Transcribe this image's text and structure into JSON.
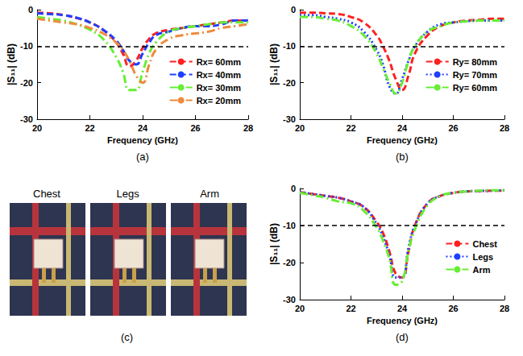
{
  "chart_data": [
    {
      "type": "line",
      "caption": "(a)",
      "x_label": "Frequency (GHz)",
      "y_label": "|S₁₁| (dB)",
      "x": [
        20,
        20.5,
        21,
        21.5,
        22,
        22.5,
        23,
        23.25,
        23.5,
        23.75,
        24,
        24.25,
        24.5,
        25,
        25.5,
        26,
        26.5,
        27,
        27.5,
        28
      ],
      "xlim": [
        20,
        28
      ],
      "xticks": [
        20,
        22,
        24,
        26,
        28
      ],
      "ylim": [
        -30,
        0
      ],
      "yticks": [
        -30,
        -20,
        -10,
        0
      ],
      "threshold": -10,
      "grid": false,
      "legend": "upper right",
      "series": [
        {
          "name": "Rx= 60mm",
          "color": "#ff2020",
          "line_style": "dashed",
          "values": [
            -0.8,
            -1,
            -1.5,
            -2.3,
            -3.5,
            -5.5,
            -9,
            -12,
            -15.5,
            -14,
            -10.5,
            -8,
            -6.5,
            -5.5,
            -5,
            -4.5,
            -4,
            -3.5,
            -3,
            -3
          ]
        },
        {
          "name": "Rx= 40mm",
          "color": "#1f3fff",
          "line_style": "dashed",
          "values": [
            -1,
            -1.2,
            -1.5,
            -2.2,
            -3.5,
            -5.5,
            -8.5,
            -11,
            -14,
            -15,
            -12,
            -9,
            -7,
            -6,
            -5,
            -4.5,
            -4.5,
            -4,
            -3,
            -3
          ]
        },
        {
          "name": "Rx= 30mm",
          "color": "#66ee33",
          "line_style": "dashdot",
          "values": [
            -2,
            -2.5,
            -3,
            -4,
            -5.5,
            -8,
            -13,
            -17,
            -22,
            -22,
            -17,
            -12,
            -9,
            -6,
            -5,
            -4.5,
            -4,
            -3.5,
            -3.5,
            -3.5
          ]
        },
        {
          "name": "Rx= 20mm",
          "color": "#f08a3c",
          "line_style": "dashdot",
          "values": [
            -2.5,
            -3,
            -3.5,
            -4,
            -5,
            -6.5,
            -9,
            -11,
            -14,
            -18,
            -20,
            -15,
            -11,
            -8,
            -7,
            -6.5,
            -6,
            -5,
            -4.5,
            -4
          ]
        }
      ]
    },
    {
      "type": "line",
      "caption": "(b)",
      "x_label": "Frequency (GHz)",
      "y_label": "|S₁₁| (dB)",
      "x": [
        20,
        20.5,
        21,
        21.5,
        22,
        22.5,
        23,
        23.25,
        23.5,
        23.75,
        24,
        24.25,
        24.5,
        25,
        25.5,
        26,
        26.5,
        27,
        27.5,
        28
      ],
      "xlim": [
        20,
        28
      ],
      "xticks": [
        20,
        22,
        24,
        26,
        28
      ],
      "ylim": [
        -30,
        0
      ],
      "yticks": [
        -30,
        -20,
        -10,
        0
      ],
      "threshold": -10,
      "grid": false,
      "legend": "upper right",
      "series": [
        {
          "name": "Ry= 80mm",
          "color": "#ff2020",
          "line_style": "dashed",
          "values": [
            -0.8,
            -0.8,
            -1,
            -1.2,
            -2,
            -3.5,
            -7,
            -10,
            -14,
            -19,
            -22,
            -18,
            -12,
            -7,
            -4.5,
            -3.5,
            -3,
            -2.8,
            -2.5,
            -2.5
          ]
        },
        {
          "name": "Ry= 70mm",
          "color": "#1f3fff",
          "line_style": "dotted",
          "values": [
            -1.5,
            -1.5,
            -2,
            -2.5,
            -3.5,
            -6,
            -11,
            -15,
            -21,
            -23,
            -19,
            -14,
            -10,
            -6,
            -4,
            -3.5,
            -3.2,
            -3,
            -3,
            -3
          ]
        },
        {
          "name": "Ry= 60mm",
          "color": "#66ee33",
          "line_style": "dashdot",
          "values": [
            -2,
            -2,
            -2.5,
            -3,
            -4.5,
            -7,
            -12,
            -16,
            -20,
            -23,
            -20,
            -14,
            -10,
            -6,
            -4.5,
            -3.5,
            -3.2,
            -3,
            -3,
            -3
          ]
        }
      ]
    },
    {
      "type": "line",
      "caption": "(d)",
      "x_label": "Frequency (GHz)",
      "y_label": "|S₁₁| (dB)",
      "x": [
        20,
        20.5,
        21,
        21.5,
        22,
        22.5,
        23,
        23.25,
        23.5,
        23.75,
        24,
        24.25,
        24.5,
        25,
        25.5,
        26,
        26.5,
        27,
        27.5,
        28
      ],
      "xlim": [
        20,
        28
      ],
      "xticks": [
        20,
        22,
        24,
        26,
        28
      ],
      "ylim": [
        -30,
        0
      ],
      "yticks": [
        -30,
        -20,
        -10,
        0
      ],
      "threshold": -10,
      "grid": false,
      "legend": "right",
      "series": [
        {
          "name": "Chest",
          "color": "#ff2020",
          "line_style": "dashed",
          "values": [
            -1,
            -1.5,
            -2,
            -2.5,
            -3.5,
            -5,
            -9,
            -12,
            -17,
            -23,
            -24,
            -17,
            -10,
            -4,
            -2,
            -1.2,
            -0.8,
            -0.7,
            -0.6,
            -0.6
          ]
        },
        {
          "name": "Legs",
          "color": "#1f3fff",
          "line_style": "dotted",
          "values": [
            -1,
            -1.5,
            -2,
            -2.5,
            -3.5,
            -5,
            -9.5,
            -13,
            -18,
            -24,
            -24,
            -16,
            -10,
            -4,
            -2,
            -1.2,
            -0.8,
            -0.7,
            -0.6,
            -0.5
          ]
        },
        {
          "name": "Arm",
          "color": "#66ee33",
          "line_style": "dashdot",
          "values": [
            -1.2,
            -1.8,
            -2.5,
            -3.5,
            -4,
            -6,
            -10.5,
            -14,
            -19,
            -26,
            -25,
            -17,
            -11,
            -4.5,
            -2,
            -1.2,
            -0.8,
            -0.6,
            -0.5,
            -0.5
          ]
        }
      ]
    }
  ],
  "photos": {
    "caption": "(c)",
    "labels": [
      "Chest",
      "Legs",
      "Arm"
    ]
  }
}
